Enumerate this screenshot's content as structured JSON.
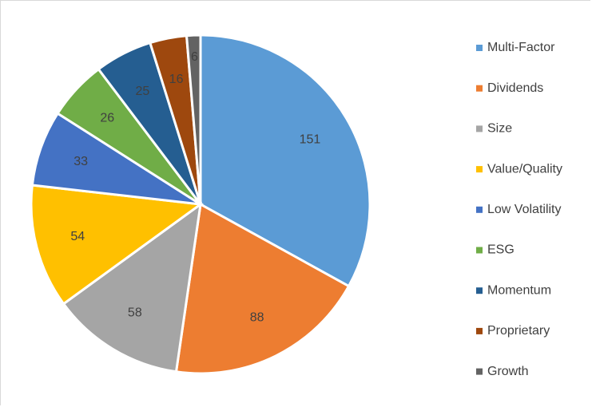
{
  "chart_data": {
    "type": "pie",
    "title": "",
    "legend_position": "right",
    "categories": [
      "Multi-Factor",
      "Dividends",
      "Size",
      "Value/Quality",
      "Low Volatility",
      "ESG",
      "Momentum",
      "Proprietary",
      "Growth"
    ],
    "values": [
      151,
      88,
      58,
      54,
      33,
      26,
      25,
      16,
      6
    ],
    "colors": [
      "#5B9BD5",
      "#ED7D31",
      "#A5A5A5",
      "#FFC000",
      "#4472C4",
      "#70AD47",
      "#255E91",
      "#9E480E",
      "#636363"
    ],
    "data_labels": [
      "151",
      "88",
      "58",
      "54",
      "33",
      "26",
      "25",
      "16",
      "6"
    ]
  }
}
